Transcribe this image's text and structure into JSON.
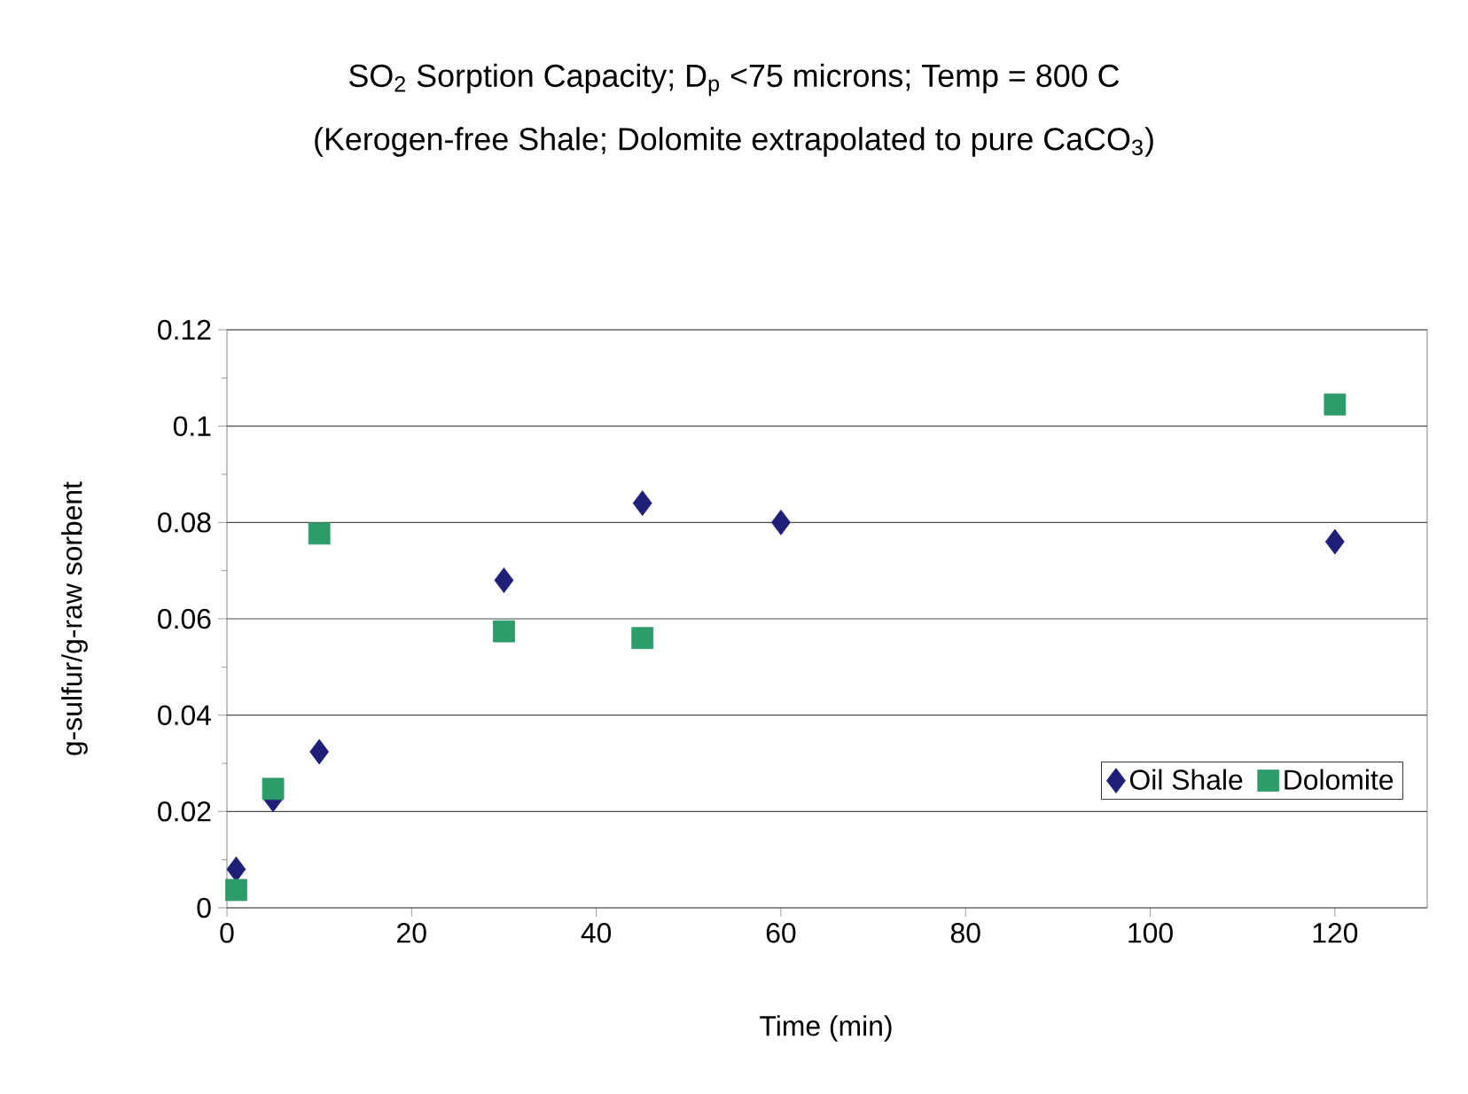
{
  "chart_data": {
    "type": "scatter",
    "title": "SO$_{2}$ Sorption Capacity; D$_{p}$ <75 microns; Temp = 800 C",
    "subtitle": "(Kerogen-free Shale; Dolomite extrapolated to pure CaCO$_{3}$)",
    "xlabel": "Time (min)",
    "ylabel": "g-sulfur/g-raw sorbent",
    "series": [
      {
        "name": "Oil Shale",
        "color": "#1f1f78",
        "marker": "diamond",
        "x": [
          1,
          5,
          10,
          30,
          45,
          60,
          120
        ],
        "values": [
          0.008,
          0.0225,
          0.0324,
          0.068,
          0.084,
          0.08,
          0.076
        ]
      },
      {
        "name": "Dolomite",
        "color": "#2e9b6a",
        "marker": "square",
        "x": [
          1,
          5,
          10,
          30,
          45,
          120
        ],
        "values": [
          0.0037,
          0.0247,
          0.0777,
          0.0574,
          0.056,
          0.1045
        ]
      }
    ],
    "xlim": [
      0,
      130
    ],
    "xticks": [
      0,
      20,
      40,
      60,
      80,
      100,
      120
    ],
    "ylim": [
      0,
      0.12
    ],
    "yticks": [
      0,
      0.02,
      0.04,
      0.06,
      0.08,
      0.1,
      0.12
    ],
    "grid": "y",
    "legend": "right"
  }
}
